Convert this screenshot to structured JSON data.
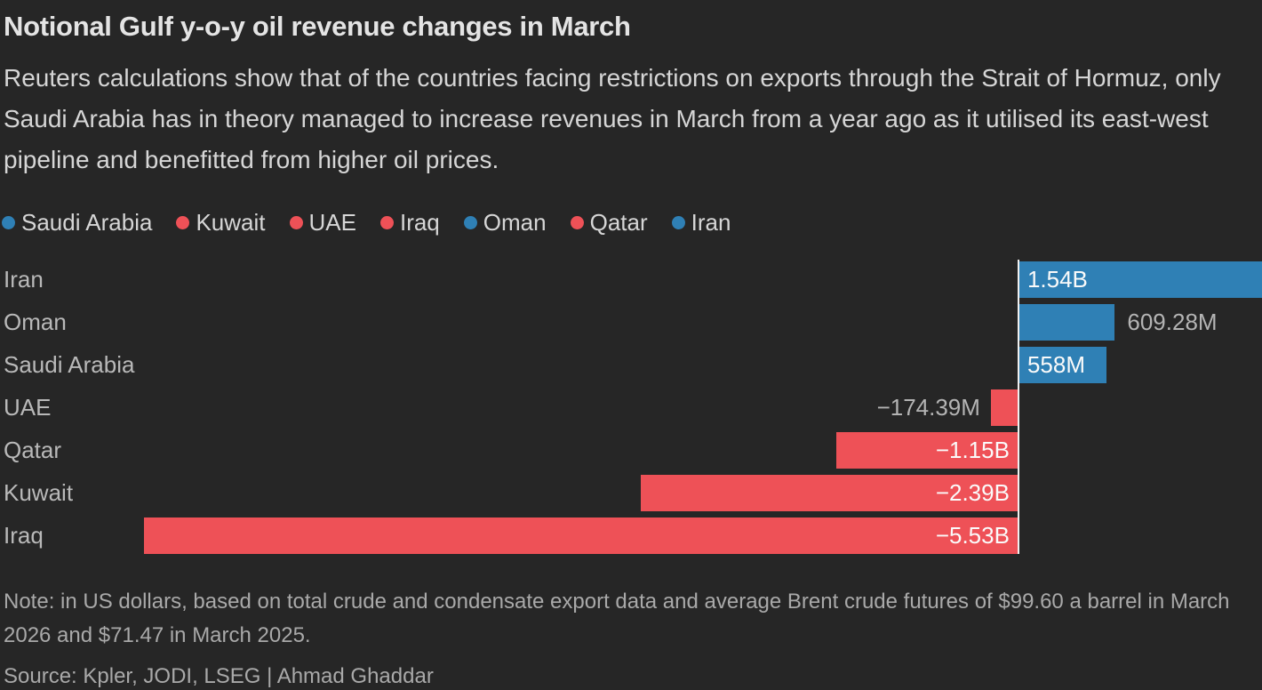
{
  "header": {
    "title": "Notional Gulf y-o-y oil revenue changes in March",
    "subtitle": "Reuters calculations show that of the countries facing restrictions on exports through the Strait of Hormuz, only Saudi Arabia has in theory managed to increase revenues in March from a year ago as it utilised its east-west pipeline and benefitted from higher oil prices."
  },
  "legend": {
    "items": [
      {
        "label": "Saudi Arabia",
        "color": "#2f80b5"
      },
      {
        "label": "Kuwait",
        "color": "#ee5157"
      },
      {
        "label": "UAE",
        "color": "#ee5157"
      },
      {
        "label": "Iraq",
        "color": "#ee5157"
      },
      {
        "label": "Oman",
        "color": "#2f80b5"
      },
      {
        "label": "Qatar",
        "color": "#ee5157"
      },
      {
        "label": "Iran",
        "color": "#2f80b5"
      }
    ]
  },
  "chart_data": {
    "type": "bar",
    "orientation": "horizontal",
    "unit": "USD (y-o-y revenue change)",
    "categories": [
      "Iran",
      "Oman",
      "Saudi Arabia",
      "UAE",
      "Qatar",
      "Kuwait",
      "Iraq"
    ],
    "values_billion_usd": [
      1.54,
      0.60928,
      0.558,
      -0.17439,
      -1.15,
      -2.39,
      -5.53
    ],
    "value_labels": [
      "1.54B",
      "609.28M",
      "558M",
      "−174.39M",
      "−1.15B",
      "−2.39B",
      "−5.53B"
    ],
    "label_inside": [
      true,
      false,
      true,
      false,
      true,
      true,
      true
    ],
    "positive_color": "#2f80b5",
    "negative_color": "#ee5157",
    "xlim_billion": [
      -6.44,
      1.54
    ],
    "grid": false,
    "legend_position": "top",
    "baseline_at_zero": true
  },
  "footer": {
    "note": "Note: in US dollars, based on total crude and condensate export data and average Brent crude futures of $99.60 a barrel in March 2026 and $71.47 in March 2025.",
    "source": "Source: Kpler, JODI, LSEG | Ahmad Ghaddar"
  },
  "theme": {
    "background": "#262626",
    "title_color": "#e4e4e4",
    "subtitle_color": "#d6d6d6",
    "category_color": "#b9b9b9",
    "value_inside_color": "#fafafa",
    "value_outside_color": "#b4b4b4",
    "baseline_color": "#f0f0f0",
    "footer_color": "#a9a9a9"
  }
}
